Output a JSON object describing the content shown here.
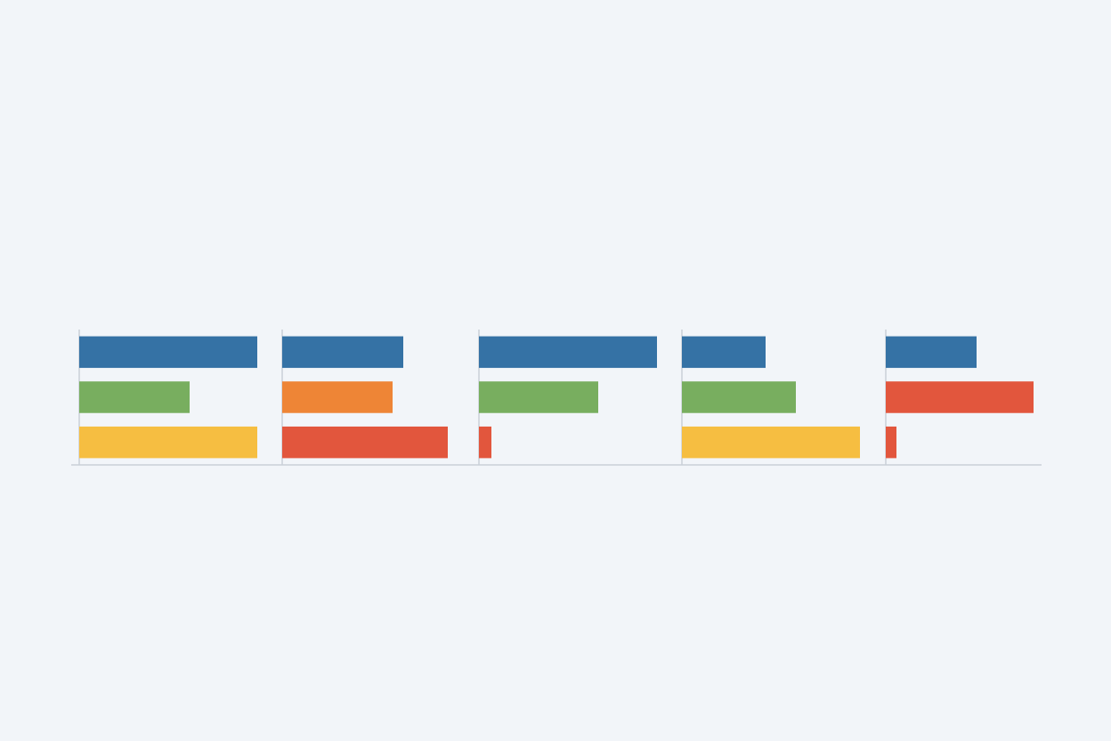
{
  "chart_data": [
    {
      "type": "bar",
      "orientation": "horizontal",
      "categories": [
        null,
        null,
        null
      ],
      "values": [
        100,
        62,
        100
      ],
      "colors": [
        "#3572a5",
        "#78ae5f",
        "#f6be41"
      ],
      "xlim": [
        0,
        114
      ]
    },
    {
      "type": "bar",
      "orientation": "horizontal",
      "categories": [
        null,
        null,
        null
      ],
      "values": [
        68,
        62,
        93
      ],
      "colors": [
        "#3572a5",
        "#ee8536",
        "#e2563d"
      ],
      "xlim": [
        0,
        114
      ]
    },
    {
      "type": "bar",
      "orientation": "horizontal",
      "categories": [
        null,
        null,
        null
      ],
      "values": [
        100,
        67,
        7
      ],
      "colors": [
        "#3572a5",
        "#78ae5f",
        "#e2563d"
      ],
      "xlim": [
        0,
        114
      ]
    },
    {
      "type": "bar",
      "orientation": "horizontal",
      "categories": [
        null,
        null,
        null
      ],
      "values": [
        47,
        64,
        100
      ],
      "colors": [
        "#3572a5",
        "#78ae5f",
        "#f6be41"
      ],
      "xlim": [
        0,
        114
      ]
    },
    {
      "type": "bar",
      "orientation": "horizontal",
      "categories": [
        null,
        null,
        null
      ],
      "values": [
        51,
        83,
        6
      ],
      "colors": [
        "#3572a5",
        "#e2563d",
        "#e2563d"
      ],
      "xlim": [
        0,
        114
      ]
    }
  ]
}
